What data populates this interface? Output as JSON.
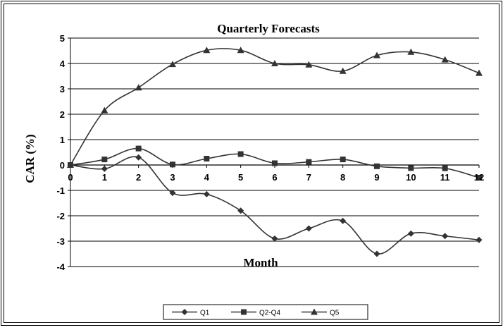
{
  "chart_data": {
    "type": "line",
    "title": "Quarterly Forecasts",
    "xlabel": "Month",
    "ylabel": "CAR (%)",
    "x": [
      0,
      1,
      2,
      3,
      4,
      5,
      6,
      7,
      8,
      9,
      10,
      11,
      12
    ],
    "xlim": [
      0,
      12
    ],
    "ylim": [
      -4,
      5
    ],
    "yticks": [
      -4,
      -3,
      -2,
      -1,
      0,
      1,
      2,
      3,
      4,
      5
    ],
    "grid": true,
    "legend_position": "bottom",
    "series": [
      {
        "name": "Q1",
        "marker": "diamond",
        "color": "#333333",
        "values": [
          0.0,
          -0.15,
          0.3,
          -1.1,
          -1.15,
          -1.8,
          -2.9,
          -2.5,
          -2.2,
          -3.5,
          -2.7,
          -2.8,
          -2.95
        ]
      },
      {
        "name": "Q2-Q4",
        "marker": "square",
        "color": "#333333",
        "values": [
          0.0,
          0.22,
          0.65,
          0.02,
          0.25,
          0.43,
          0.07,
          0.12,
          0.22,
          -0.05,
          -0.12,
          -0.13,
          -0.5
        ]
      },
      {
        "name": "Q5",
        "marker": "triangle",
        "color": "#333333",
        "values": [
          0.0,
          2.15,
          3.05,
          3.97,
          4.52,
          4.52,
          4.0,
          3.95,
          3.7,
          4.32,
          4.45,
          4.15,
          3.62
        ]
      }
    ]
  }
}
